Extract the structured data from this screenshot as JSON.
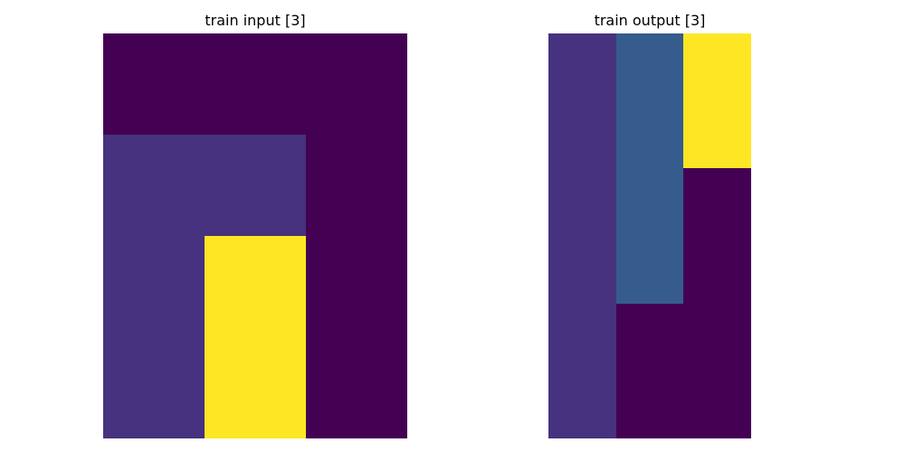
{
  "palette": {
    "0": "#440154",
    "1": "#46327e",
    "2": "#365c8d",
    "3": "#fde725"
  },
  "panels": {
    "input": {
      "title": "train input [3]",
      "grid": [
        [
          0,
          0,
          0
        ],
        [
          1,
          1,
          0
        ],
        [
          1,
          3,
          0
        ],
        [
          1,
          3,
          0
        ]
      ]
    },
    "output": {
      "title": "train output [3]",
      "grid": [
        [
          1,
          2,
          3
        ],
        [
          1,
          2,
          3
        ],
        [
          1,
          2,
          0
        ],
        [
          1,
          2,
          0
        ],
        [
          1,
          0,
          0
        ],
        [
          1,
          0,
          0
        ]
      ]
    }
  }
}
